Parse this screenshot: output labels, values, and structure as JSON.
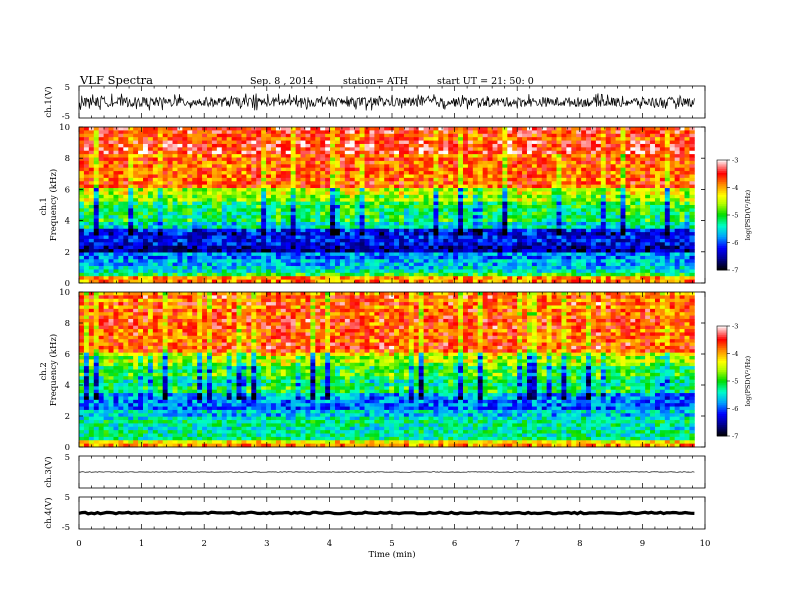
{
  "header": {
    "title": "VLF  Spectra",
    "date": "Sep. 8  , 2014",
    "station": "station= ATH",
    "start": "start  UT  =    21: 50: 0"
  },
  "chart_data": [
    {
      "type": "line",
      "panel": "ch1-waveform",
      "ylabel": "ch.1(V)",
      "ylim": [
        -5,
        5
      ],
      "ytick_labels": [
        "5",
        "-5"
      ],
      "x_range_min": [
        0,
        9.83
      ],
      "amplitude_v": [
        -1.5,
        1.5
      ],
      "mean_v": 0
    },
    {
      "type": "heatmap",
      "panel": "ch1-spectrogram",
      "ylabel": "ch.1\nFrequency  (kHz)",
      "ylim": [
        0,
        10
      ],
      "ytick_labels": [
        "0",
        "2",
        "4",
        "6",
        "8",
        "10"
      ],
      "x_range_min": [
        0,
        9.83
      ],
      "frequency_bands_khz": [
        [
          0,
          0.5
        ],
        [
          0.5,
          2
        ],
        [
          2,
          3.5
        ],
        [
          3.5,
          6
        ],
        [
          6,
          10
        ]
      ],
      "typical_log_psd": [
        -3.6,
        -5.2,
        -6.5,
        -5.5,
        -3.6
      ]
    },
    {
      "type": "heatmap",
      "panel": "ch2-spectrogram",
      "ylabel": "ch.2\nFrequency  (kHz)",
      "ylim": [
        0,
        10
      ],
      "ytick_labels": [
        "0",
        "2",
        "4",
        "6",
        "8",
        "10"
      ],
      "x_range_min": [
        0,
        9.83
      ],
      "frequency_bands_khz": [
        [
          0,
          0.5
        ],
        [
          0.5,
          2.5
        ],
        [
          2.5,
          3.5
        ],
        [
          3.5,
          6
        ],
        [
          6,
          10
        ]
      ],
      "typical_log_psd": [
        -4,
        -5.2,
        -6,
        -5.3,
        -3.7
      ]
    },
    {
      "type": "line",
      "panel": "ch3-waveform",
      "ylabel": "ch.3(V)",
      "ylim": [
        -5,
        5
      ],
      "ytick_labels": [
        "5"
      ],
      "x_range_min": [
        0,
        9.83
      ],
      "amplitude_v": [
        -0.1,
        0.1
      ],
      "mean_v": 0
    },
    {
      "type": "line",
      "panel": "ch4-waveform",
      "ylabel": "ch.4(V)",
      "ylim": [
        -5,
        5
      ],
      "ytick_labels": [
        "5",
        "-5"
      ],
      "x_range_min": [
        0,
        9.83
      ],
      "amplitude_v": [
        -0.25,
        0.25
      ],
      "mean_v": 0
    }
  ],
  "x_axis": {
    "label": "Time  (min)",
    "range": [
      0,
      10
    ],
    "tick_labels": [
      "0",
      "1",
      "2",
      "3",
      "4",
      "5",
      "6",
      "7",
      "8",
      "9",
      "10"
    ]
  },
  "colorbar": {
    "label": "log(PSD(V²/Hz)",
    "range": [
      -7,
      -3
    ],
    "tick_labels": [
      "-3",
      "-4",
      "-5",
      "-6",
      "-7"
    ],
    "colors": [
      "#000000",
      "#000088",
      "#0000ff",
      "#00aaff",
      "#00ffcc",
      "#00dd00",
      "#ffff00",
      "#ff8800",
      "#ff0000",
      "#ffffff"
    ]
  }
}
